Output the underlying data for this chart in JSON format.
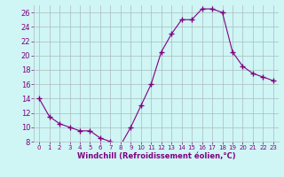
{
  "x": [
    0,
    1,
    2,
    3,
    4,
    5,
    6,
    7,
    8,
    9,
    10,
    11,
    12,
    13,
    14,
    15,
    16,
    17,
    18,
    19,
    20,
    21,
    22,
    23
  ],
  "y": [
    14,
    11.5,
    10.5,
    10,
    9.5,
    9.5,
    8.5,
    8,
    7.5,
    10,
    13,
    16,
    20.5,
    23,
    25,
    25,
    26.5,
    26.5,
    26,
    20.5,
    18.5,
    17.5,
    17,
    16.5
  ],
  "line_color": "#800080",
  "marker": "+",
  "marker_size": 4,
  "bg_color": "#cff5f5",
  "grid_color": "#aabbbb",
  "xlabel": "Windchill (Refroidissement éolien,°C)",
  "xlabel_color": "#800080",
  "tick_color": "#800080",
  "ylim": [
    8,
    27
  ],
  "xlim": [
    -0.5,
    23.5
  ],
  "yticks": [
    8,
    10,
    12,
    14,
    16,
    18,
    20,
    22,
    24,
    26
  ],
  "xticks": [
    0,
    1,
    2,
    3,
    4,
    5,
    6,
    7,
    8,
    9,
    10,
    11,
    12,
    13,
    14,
    15,
    16,
    17,
    18,
    19,
    20,
    21,
    22,
    23
  ],
  "xticklabels": [
    "0",
    "1",
    "2",
    "3",
    "4",
    "5",
    "6",
    "7",
    "8",
    "9",
    "10",
    "11",
    "12",
    "13",
    "14",
    "15",
    "16",
    "17",
    "18",
    "19",
    "20",
    "21",
    "22",
    "23"
  ]
}
